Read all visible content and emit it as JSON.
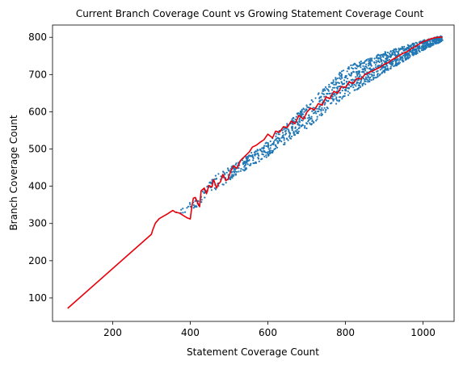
{
  "chart_data": {
    "type": "scatter",
    "title": "Current Branch Coverage Count vs Growing Statement Coverage Count",
    "xlabel": "Statement Coverage Count",
    "ylabel": "Branch Coverage Count",
    "xlim": [
      45,
      1080
    ],
    "ylim": [
      37,
      833
    ],
    "xticks": [
      200,
      400,
      600,
      800,
      1000
    ],
    "yticks": [
      100,
      200,
      300,
      400,
      500,
      600,
      700,
      800
    ],
    "grid": false,
    "legend": "none",
    "colors": {
      "scatter": "#1f77b4",
      "line": "#e8000b"
    },
    "scatter_band": {
      "description_free": true,
      "lower": [
        [
          360,
          318
        ],
        [
          420,
          345
        ],
        [
          460,
          385
        ],
        [
          520,
          430
        ],
        [
          600,
          480
        ],
        [
          700,
          555
        ],
        [
          800,
          640
        ],
        [
          900,
          705
        ],
        [
          1000,
          765
        ],
        [
          1050,
          790
        ]
      ],
      "upper": [
        [
          360,
          340
        ],
        [
          420,
          375
        ],
        [
          460,
          425
        ],
        [
          520,
          465
        ],
        [
          600,
          520
        ],
        [
          700,
          620
        ],
        [
          800,
          720
        ],
        [
          900,
          760
        ],
        [
          1000,
          792
        ],
        [
          1050,
          805
        ]
      ],
      "count": 1400
    },
    "series": [
      {
        "type": "line",
        "x": [
          84,
          300,
          303,
          310,
          320,
          340,
          355,
          362,
          372,
          392,
          400,
          404,
          408,
          413,
          418,
          424,
          428,
          436,
          442,
          448,
          456,
          460,
          468,
          472,
          478,
          484,
          492,
          498,
          504,
          512,
          520,
          530,
          540,
          552,
          560,
          570,
          580,
          590,
          600,
          612,
          620,
          630,
          640,
          650,
          660,
          670,
          680,
          692,
          700,
          710,
          720,
          730,
          740,
          750,
          760,
          770,
          780,
          790,
          800,
          810,
          820,
          830,
          840,
          850,
          860,
          870,
          880,
          890,
          900,
          910,
          920,
          930,
          940,
          950,
          960,
          970,
          980,
          990,
          1000,
          1010,
          1020,
          1030,
          1040,
          1050
        ],
        "y": [
          72,
          271,
          282,
          301,
          313,
          325,
          335,
          330,
          328,
          315,
          312,
          345,
          368,
          370,
          358,
          345,
          388,
          395,
          380,
          402,
          398,
          418,
          395,
          405,
          412,
          432,
          415,
          420,
          440,
          455,
          448,
          470,
          480,
          492,
          505,
          510,
          518,
          525,
          540,
          530,
          548,
          545,
          560,
          558,
          575,
          568,
          590,
          580,
          598,
          610,
          605,
          622,
          618,
          640,
          635,
          655,
          650,
          668,
          665,
          680,
          676,
          690,
          688,
          700,
          705,
          710,
          715,
          720,
          728,
          732,
          740,
          745,
          752,
          758,
          762,
          770,
          775,
          782,
          788,
          792,
          796,
          799,
          800,
          801
        ]
      }
    ]
  }
}
